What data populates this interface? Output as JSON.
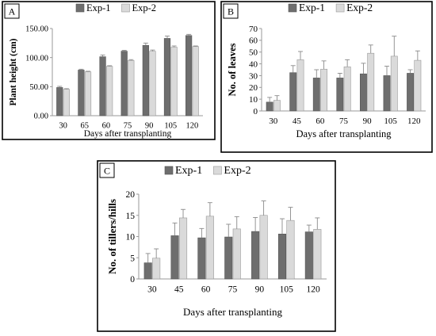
{
  "chart_data": [
    {
      "panel": "A",
      "type": "bar",
      "categories": [
        "30",
        "65",
        "60",
        "75",
        "90",
        "105",
        "120"
      ],
      "series": [
        {
          "name": "Exp-1",
          "values": [
            48.5,
            78.5,
            101.5,
            111,
            121,
            133,
            138
          ],
          "errors": [
            2,
            1.5,
            3,
            1.5,
            4,
            4,
            2
          ]
        },
        {
          "name": "Exp-2",
          "values": [
            45.5,
            75.5,
            85,
            95,
            111,
            118,
            119
          ],
          "errors": [
            1,
            1,
            1,
            1.5,
            2,
            2,
            1
          ]
        }
      ],
      "xlabel": "Days after transplanting",
      "ylabel": "Plant height (cm)",
      "ylim": [
        0,
        150
      ],
      "yticks": [
        "0.00",
        "50.00",
        "100.00",
        "150.00"
      ],
      "ytick_values": [
        0,
        50,
        100,
        150
      ],
      "legend_position": "top"
    },
    {
      "panel": "B",
      "type": "bar",
      "categories": [
        "30",
        "45",
        "60",
        "75",
        "90",
        "105",
        "120"
      ],
      "series": [
        {
          "name": "Exp-1",
          "values": [
            7.5,
            32.5,
            28,
            28,
            31.5,
            30,
            32
          ],
          "errors": [
            4,
            6,
            7,
            4,
            9,
            8,
            3
          ]
        },
        {
          "name": "Exp-2",
          "values": [
            9,
            43.5,
            35.5,
            37.5,
            49,
            46.5,
            43
          ],
          "errors": [
            4,
            7,
            7,
            6,
            7,
            17,
            8
          ]
        }
      ],
      "xlabel": "Days after transplanting",
      "ylabel": "No. of leaves",
      "ylim": [
        0,
        70
      ],
      "yticks": [
        "0",
        "10",
        "20",
        "30",
        "40",
        "50",
        "60",
        "70"
      ],
      "ytick_values": [
        0,
        10,
        20,
        30,
        40,
        50,
        60,
        70
      ],
      "legend_position": "top"
    },
    {
      "panel": "C",
      "type": "bar",
      "categories": [
        "30",
        "45",
        "60",
        "75",
        "90",
        "105",
        "120"
      ],
      "series": [
        {
          "name": "Exp-1",
          "values": [
            3.8,
            10.2,
            9.7,
            9.9,
            11.2,
            10.6,
            11.1
          ],
          "errors": [
            2.2,
            3,
            2.2,
            3,
            3.3,
            3.6,
            1.6
          ]
        },
        {
          "name": "Exp-2",
          "values": [
            4.9,
            14.4,
            14.8,
            11.8,
            15,
            13.8,
            11.7
          ],
          "errors": [
            2.2,
            2,
            3.2,
            2.9,
            3.4,
            3.1,
            2.7
          ]
        }
      ],
      "xlabel": "Days after transplanting",
      "ylabel": "No. of tillers/hills",
      "ylim": [
        0,
        20
      ],
      "yticks": [
        "0",
        "5",
        "10",
        "15",
        "20"
      ],
      "ytick_values": [
        0,
        5,
        10,
        15,
        20
      ],
      "legend_position": "top"
    }
  ],
  "colors": {
    "exp1": "#6e6e6e",
    "exp2": "#dadada",
    "border": "#000000",
    "axis": "#9a9a9a",
    "errorbar": "#8a8a8a"
  }
}
